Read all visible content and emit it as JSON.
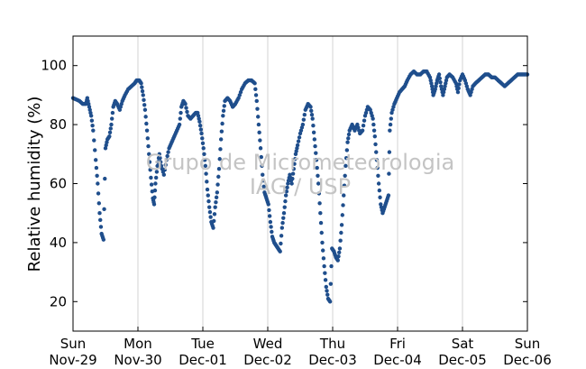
{
  "watermark": {
    "line1": "Grupo de Micrometeorologia",
    "line2": "IAG / USP"
  },
  "chart_data": {
    "type": "scatter",
    "title": "",
    "xlabel": "",
    "ylabel": "Relative humidity (%)",
    "xlim": [
      "2015-11-29 00:00",
      "2015-12-06 00:00"
    ],
    "ylim": [
      10,
      110
    ],
    "y_ticks": [
      20,
      40,
      60,
      80,
      100
    ],
    "x_ticks": [
      {
        "day": "Sun",
        "date": "Nov-29"
      },
      {
        "day": "Mon",
        "date": "Nov-30"
      },
      {
        "day": "Tue",
        "date": "Dec-01"
      },
      {
        "day": "Wed",
        "date": "Dec-02"
      },
      {
        "day": "Thu",
        "date": "Dec-03"
      },
      {
        "day": "Fri",
        "date": "Dec-04"
      },
      {
        "day": "Sat",
        "date": "Dec-05"
      },
      {
        "day": "Sun",
        "date": "Dec-06"
      }
    ],
    "grid": "vertical lines at day boundaries",
    "marker_color": "#1f4e8c",
    "series": [
      {
        "name": "",
        "x_unit": "days since Nov-29 00:00",
        "points": [
          [
            0.0,
            89
          ],
          [
            0.05,
            88.5
          ],
          [
            0.1,
            88
          ],
          [
            0.15,
            87
          ],
          [
            0.2,
            87
          ],
          [
            0.22,
            89
          ],
          [
            0.25,
            86
          ],
          [
            0.28,
            83
          ],
          [
            0.31,
            78
          ],
          [
            0.35,
            68
          ],
          [
            0.38,
            60
          ],
          [
            0.41,
            50
          ],
          [
            0.44,
            43
          ],
          [
            0.47,
            41
          ],
          [
            0.5,
            72
          ],
          [
            0.53,
            75
          ],
          [
            0.56,
            76
          ],
          [
            0.59,
            80
          ],
          [
            0.62,
            86
          ],
          [
            0.65,
            88
          ],
          [
            0.68,
            87
          ],
          [
            0.72,
            85
          ],
          [
            0.76,
            88
          ],
          [
            0.8,
            90
          ],
          [
            0.85,
            92
          ],
          [
            0.9,
            93
          ],
          [
            0.95,
            94
          ],
          [
            0.98,
            95
          ],
          [
            1.02,
            95
          ],
          [
            1.05,
            94
          ],
          [
            1.08,
            90
          ],
          [
            1.11,
            85
          ],
          [
            1.14,
            78
          ],
          [
            1.17,
            70
          ],
          [
            1.2,
            62
          ],
          [
            1.23,
            55
          ],
          [
            1.25,
            53
          ],
          [
            1.27,
            60
          ],
          [
            1.3,
            66
          ],
          [
            1.33,
            70
          ],
          [
            1.36,
            66
          ],
          [
            1.4,
            63
          ],
          [
            1.44,
            68
          ],
          [
            1.48,
            72
          ],
          [
            1.52,
            74
          ],
          [
            1.56,
            76
          ],
          [
            1.6,
            78
          ],
          [
            1.64,
            80
          ],
          [
            1.67,
            86
          ],
          [
            1.7,
            88
          ],
          [
            1.73,
            87
          ],
          [
            1.77,
            83
          ],
          [
            1.81,
            82
          ],
          [
            1.85,
            83
          ],
          [
            1.89,
            84
          ],
          [
            1.92,
            84
          ],
          [
            1.95,
            81
          ],
          [
            1.98,
            77
          ],
          [
            2.01,
            72
          ],
          [
            2.04,
            66
          ],
          [
            2.07,
            58
          ],
          [
            2.1,
            52
          ],
          [
            2.13,
            47
          ],
          [
            2.16,
            45
          ],
          [
            2.19,
            52
          ],
          [
            2.22,
            57
          ],
          [
            2.25,
            65
          ],
          [
            2.28,
            75
          ],
          [
            2.31,
            83
          ],
          [
            2.34,
            88
          ],
          [
            2.38,
            89
          ],
          [
            2.42,
            88
          ],
          [
            2.46,
            86
          ],
          [
            2.5,
            87
          ],
          [
            2.55,
            89
          ],
          [
            2.6,
            92
          ],
          [
            2.65,
            94
          ],
          [
            2.7,
            95
          ],
          [
            2.75,
            95
          ],
          [
            2.8,
            94
          ],
          [
            2.83,
            88
          ],
          [
            2.86,
            80
          ],
          [
            2.89,
            72
          ],
          [
            2.92,
            63
          ],
          [
            2.95,
            57
          ],
          [
            2.98,
            55
          ],
          [
            3.01,
            53
          ],
          [
            3.04,
            47
          ],
          [
            3.07,
            42
          ],
          [
            3.1,
            40
          ],
          [
            3.13,
            39
          ],
          [
            3.16,
            38
          ],
          [
            3.19,
            37
          ],
          [
            3.22,
            45
          ],
          [
            3.25,
            50
          ],
          [
            3.28,
            56
          ],
          [
            3.31,
            60
          ],
          [
            3.34,
            63
          ],
          [
            3.37,
            60
          ],
          [
            3.4,
            65
          ],
          [
            3.43,
            70
          ],
          [
            3.46,
            73
          ],
          [
            3.5,
            77
          ],
          [
            3.54,
            80
          ],
          [
            3.58,
            85
          ],
          [
            3.62,
            87
          ],
          [
            3.66,
            86
          ],
          [
            3.69,
            82
          ],
          [
            3.72,
            75
          ],
          [
            3.75,
            68
          ],
          [
            3.78,
            60
          ],
          [
            3.81,
            50
          ],
          [
            3.84,
            40
          ],
          [
            3.87,
            32
          ],
          [
            3.9,
            25
          ],
          [
            3.93,
            21
          ],
          [
            3.96,
            20
          ],
          [
            3.99,
            38
          ],
          [
            4.02,
            37
          ],
          [
            4.05,
            35
          ],
          [
            4.08,
            34
          ],
          [
            4.11,
            38
          ],
          [
            4.14,
            46
          ],
          [
            4.17,
            56
          ],
          [
            4.2,
            66
          ],
          [
            4.23,
            74
          ],
          [
            4.26,
            78
          ],
          [
            4.3,
            80
          ],
          [
            4.34,
            78
          ],
          [
            4.38,
            80
          ],
          [
            4.42,
            77
          ],
          [
            4.46,
            78
          ],
          [
            4.5,
            83
          ],
          [
            4.54,
            86
          ],
          [
            4.58,
            85
          ],
          [
            4.62,
            82
          ],
          [
            4.65,
            76
          ],
          [
            4.68,
            68
          ],
          [
            4.71,
            60
          ],
          [
            4.74,
            53
          ],
          [
            4.77,
            50
          ],
          [
            4.8,
            52
          ],
          [
            4.83,
            54
          ],
          [
            4.86,
            56
          ],
          [
            4.88,
            78
          ],
          [
            4.91,
            84
          ],
          [
            4.95,
            87
          ],
          [
            4.99,
            89
          ],
          [
            5.03,
            91
          ],
          [
            5.07,
            92
          ],
          [
            5.11,
            93
          ],
          [
            5.15,
            95
          ],
          [
            5.2,
            97
          ],
          [
            5.25,
            98
          ],
          [
            5.3,
            97
          ],
          [
            5.35,
            97
          ],
          [
            5.4,
            98
          ],
          [
            5.45,
            98
          ],
          [
            5.5,
            96
          ],
          [
            5.53,
            93
          ],
          [
            5.55,
            90
          ],
          [
            5.58,
            92
          ],
          [
            5.61,
            95
          ],
          [
            5.64,
            97
          ],
          [
            5.67,
            93
          ],
          [
            5.7,
            90
          ],
          [
            5.73,
            93
          ],
          [
            5.76,
            96
          ],
          [
            5.8,
            97
          ],
          [
            5.85,
            96
          ],
          [
            5.9,
            94
          ],
          [
            5.93,
            91
          ],
          [
            5.96,
            95
          ],
          [
            6.0,
            97
          ],
          [
            6.04,
            95
          ],
          [
            6.08,
            92
          ],
          [
            6.12,
            90
          ],
          [
            6.16,
            93
          ],
          [
            6.2,
            94
          ],
          [
            6.25,
            95
          ],
          [
            6.3,
            96
          ],
          [
            6.35,
            97
          ],
          [
            6.4,
            97
          ],
          [
            6.45,
            96
          ],
          [
            6.5,
            96
          ],
          [
            6.55,
            95
          ],
          [
            6.6,
            94
          ],
          [
            6.65,
            93
          ],
          [
            6.7,
            94
          ],
          [
            6.75,
            95
          ],
          [
            6.8,
            96
          ],
          [
            6.85,
            97
          ],
          [
            6.9,
            97
          ],
          [
            6.95,
            97
          ],
          [
            7.0,
            97
          ]
        ]
      }
    ]
  }
}
